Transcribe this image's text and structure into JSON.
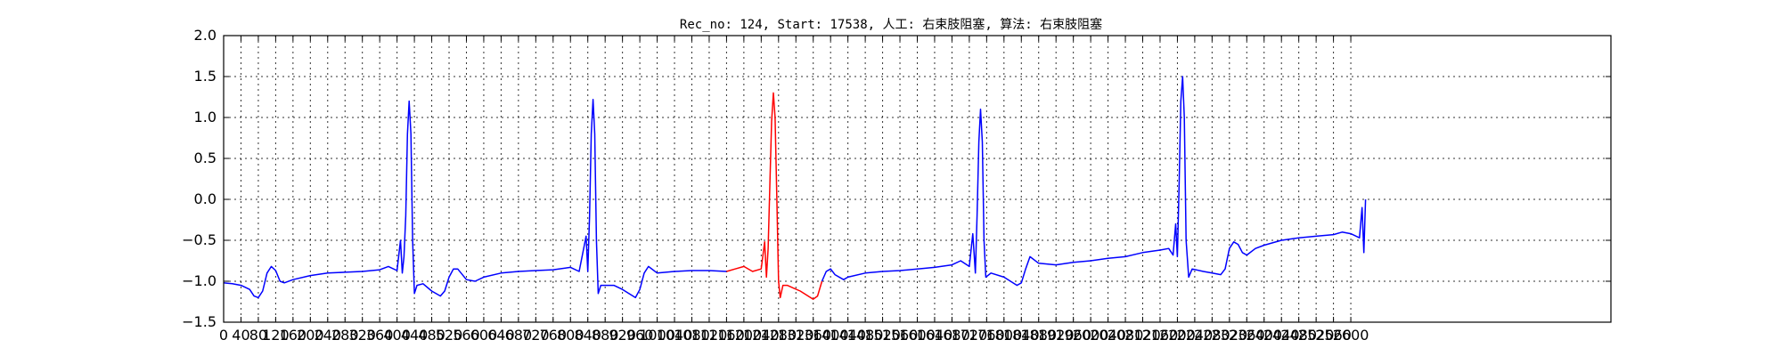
{
  "chart_data": {
    "type": "line",
    "title": "Rec_no: 124, Start: 17538, 人工: 右束肢阻塞, 算法: 右束肢阻塞",
    "xlabel": "",
    "ylabel": "",
    "xlim": [
      0,
      3200
    ],
    "ylim": [
      -1.5,
      2.0
    ],
    "grid": true,
    "x_ticks": [
      0,
      40,
      80,
      120,
      160,
      200,
      240,
      280,
      320,
      360,
      400,
      440,
      480,
      520,
      560,
      600,
      640,
      680,
      720,
      760,
      800,
      840,
      880,
      920,
      960,
      1000,
      1040,
      1080,
      1120,
      1160,
      1200,
      1240,
      1280,
      1320,
      1360,
      1400,
      1440,
      1480,
      1520,
      1560,
      1600,
      1640,
      1680,
      1720,
      1760,
      1800,
      1840,
      1880,
      1920,
      1960,
      2000,
      2040,
      2080,
      2120,
      2160,
      2200,
      2240,
      2280,
      2320,
      2360,
      2400,
      2440,
      2480,
      2520,
      2560,
      2600
    ],
    "x_tick_labels": [
      "0",
      "40",
      "80",
      "120",
      "160",
      "200",
      "240",
      "280",
      "320",
      "360",
      "400",
      "440",
      "480",
      "520",
      "560",
      "600",
      "640",
      "680",
      "720",
      "760",
      "800",
      "840",
      "880",
      "920",
      "960",
      "1000",
      "1040",
      "1080",
      "1120",
      "1160",
      "1200",
      "1240",
      "1280",
      "1320",
      "1360",
      "1400",
      "1440",
      "1480",
      "1520",
      "1560",
      "1600",
      "1640",
      "1680",
      "1720",
      "1760",
      "1800",
      "1840",
      "1880",
      "1920",
      "1960",
      "2000",
      "2040",
      "2080",
      "2120",
      "2160",
      "2200",
      "2240",
      "2280",
      "2320",
      "2360",
      "2400",
      "2440",
      "2480",
      "2520",
      "2560",
      "2600"
    ],
    "y_ticks": [
      2.0,
      1.5,
      1.0,
      0.5,
      0.0,
      -0.5,
      -1.0,
      -1.5
    ],
    "y_tick_labels": [
      "2.0",
      "1.5",
      "1.0",
      "0.5",
      "0.0",
      "−0.5",
      "−1.0",
      "−1.5"
    ],
    "series": [
      {
        "color": "#0000ff",
        "points": [
          [
            0,
            -1.02
          ],
          [
            20,
            -1.03
          ],
          [
            40,
            -1.05
          ],
          [
            60,
            -1.1
          ],
          [
            70,
            -1.18
          ],
          [
            80,
            -1.2
          ],
          [
            90,
            -1.12
          ],
          [
            100,
            -0.9
          ],
          [
            110,
            -0.82
          ],
          [
            120,
            -0.87
          ],
          [
            130,
            -1.0
          ],
          [
            140,
            -1.02
          ],
          [
            160,
            -0.98
          ],
          [
            200,
            -0.93
          ],
          [
            240,
            -0.9
          ],
          [
            280,
            -0.89
          ],
          [
            320,
            -0.88
          ],
          [
            360,
            -0.86
          ],
          [
            380,
            -0.82
          ],
          [
            400,
            -0.87
          ],
          [
            408,
            -0.5
          ],
          [
            412,
            -0.9
          ],
          [
            416,
            -0.7
          ],
          [
            420,
            -0.2
          ],
          [
            424,
            0.8
          ],
          [
            428,
            1.2
          ],
          [
            432,
            0.8
          ],
          [
            436,
            -0.5
          ],
          [
            440,
            -1.15
          ],
          [
            446,
            -1.05
          ],
          [
            460,
            -1.03
          ],
          [
            480,
            -1.12
          ],
          [
            500,
            -1.18
          ],
          [
            510,
            -1.12
          ],
          [
            520,
            -0.95
          ],
          [
            530,
            -0.85
          ],
          [
            540,
            -0.85
          ],
          [
            560,
            -0.98
          ],
          [
            580,
            -1.0
          ],
          [
            600,
            -0.95
          ],
          [
            640,
            -0.9
          ],
          [
            680,
            -0.88
          ],
          [
            720,
            -0.87
          ],
          [
            760,
            -0.86
          ],
          [
            800,
            -0.83
          ],
          [
            820,
            -0.88
          ],
          [
            836,
            -0.45
          ],
          [
            840,
            -0.88
          ],
          [
            844,
            -0.2
          ],
          [
            848,
            0.8
          ],
          [
            852,
            1.22
          ],
          [
            856,
            0.8
          ],
          [
            860,
            -0.5
          ],
          [
            864,
            -1.15
          ],
          [
            870,
            -1.05
          ],
          [
            900,
            -1.05
          ],
          [
            920,
            -1.1
          ],
          [
            950,
            -1.2
          ],
          [
            960,
            -1.1
          ],
          [
            970,
            -0.9
          ],
          [
            980,
            -0.82
          ],
          [
            1000,
            -0.9
          ],
          [
            1040,
            -0.88
          ],
          [
            1080,
            -0.87
          ],
          [
            1120,
            -0.87
          ],
          [
            1160,
            -0.88
          ]
        ]
      },
      {
        "color": "#ff0000",
        "points": [
          [
            1160,
            -0.88
          ],
          [
            1180,
            -0.85
          ],
          [
            1200,
            -0.82
          ],
          [
            1220,
            -0.88
          ],
          [
            1240,
            -0.85
          ],
          [
            1248,
            -0.52
          ],
          [
            1252,
            -0.95
          ],
          [
            1256,
            -0.6
          ],
          [
            1260,
            0.2
          ],
          [
            1264,
            0.95
          ],
          [
            1268,
            1.3
          ],
          [
            1272,
            1.0
          ],
          [
            1276,
            0.0
          ],
          [
            1280,
            -1.0
          ],
          [
            1284,
            -1.2
          ],
          [
            1290,
            -1.05
          ],
          [
            1300,
            -1.05
          ],
          [
            1330,
            -1.12
          ],
          [
            1360,
            -1.22
          ],
          [
            1370,
            -1.18
          ],
          [
            1380,
            -1.0
          ]
        ]
      },
      {
        "color": "#0000ff",
        "points": [
          [
            1380,
            -1.0
          ],
          [
            1390,
            -0.88
          ],
          [
            1400,
            -0.85
          ],
          [
            1410,
            -0.92
          ],
          [
            1430,
            -0.98
          ],
          [
            1440,
            -0.95
          ],
          [
            1480,
            -0.9
          ],
          [
            1520,
            -0.88
          ],
          [
            1560,
            -0.87
          ],
          [
            1600,
            -0.85
          ],
          [
            1640,
            -0.83
          ],
          [
            1680,
            -0.8
          ],
          [
            1700,
            -0.75
          ],
          [
            1720,
            -0.82
          ],
          [
            1728,
            -0.42
          ],
          [
            1734,
            -0.9
          ],
          [
            1738,
            -0.2
          ],
          [
            1742,
            0.7
          ],
          [
            1746,
            1.1
          ],
          [
            1750,
            0.7
          ],
          [
            1754,
            -0.5
          ],
          [
            1758,
            -0.95
          ],
          [
            1770,
            -0.9
          ],
          [
            1800,
            -0.95
          ],
          [
            1830,
            -1.05
          ],
          [
            1840,
            -1.02
          ],
          [
            1850,
            -0.85
          ],
          [
            1860,
            -0.7
          ],
          [
            1880,
            -0.78
          ],
          [
            1920,
            -0.8
          ],
          [
            1960,
            -0.77
          ],
          [
            2000,
            -0.75
          ],
          [
            2040,
            -0.72
          ],
          [
            2080,
            -0.7
          ],
          [
            2120,
            -0.65
          ],
          [
            2160,
            -0.62
          ],
          [
            2180,
            -0.6
          ],
          [
            2190,
            -0.68
          ],
          [
            2196,
            -0.3
          ],
          [
            2200,
            -0.7
          ],
          [
            2204,
            0.2
          ],
          [
            2208,
            1.2
          ],
          [
            2212,
            1.5
          ],
          [
            2216,
            1.0
          ],
          [
            2220,
            -0.5
          ],
          [
            2226,
            -0.95
          ],
          [
            2234,
            -0.85
          ],
          [
            2260,
            -0.88
          ],
          [
            2280,
            -0.9
          ],
          [
            2300,
            -0.92
          ],
          [
            2310,
            -0.85
          ],
          [
            2320,
            -0.6
          ],
          [
            2330,
            -0.52
          ],
          [
            2340,
            -0.55
          ],
          [
            2350,
            -0.65
          ],
          [
            2360,
            -0.68
          ],
          [
            2380,
            -0.6
          ],
          [
            2400,
            -0.56
          ],
          [
            2440,
            -0.5
          ],
          [
            2480,
            -0.47
          ],
          [
            2520,
            -0.45
          ],
          [
            2560,
            -0.43
          ],
          [
            2580,
            -0.4
          ],
          [
            2600,
            -0.42
          ],
          [
            2620,
            -0.47
          ],
          [
            2626,
            -0.1
          ],
          [
            2630,
            -0.65
          ],
          [
            2634,
            0.0
          ]
        ]
      }
    ]
  }
}
